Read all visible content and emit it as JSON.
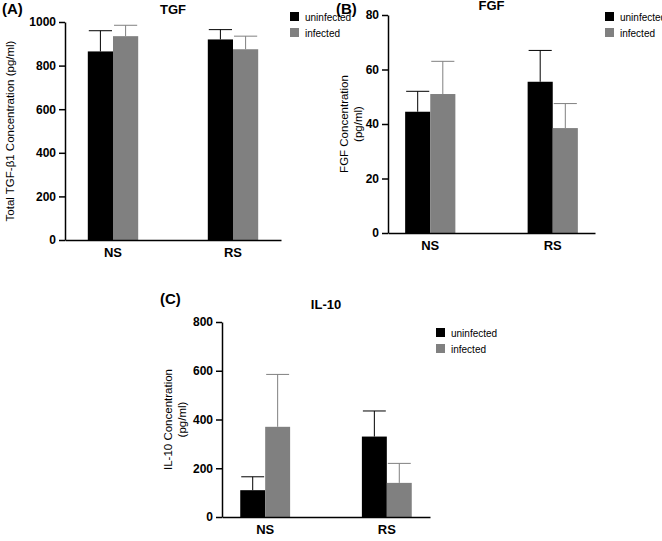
{
  "chart_data": [
    {
      "type": "bar",
      "panel_label": "(A)",
      "title": "TGF",
      "ylabel": [
        "Total TGF-β1 Concentration (pg/ml)"
      ],
      "categories": [
        "NS",
        "RS"
      ],
      "series": [
        {
          "name": "uninfected",
          "color": "#000000",
          "values": [
            865,
            920
          ],
          "errors": [
            95,
            45
          ]
        },
        {
          "name": "infected",
          "color": "#808080",
          "values": [
            935,
            875
          ],
          "errors": [
            50,
            60
          ]
        }
      ],
      "ylim": [
        0,
        1000
      ],
      "yticks": [
        0,
        200,
        400,
        600,
        800,
        1000
      ],
      "legend": "top-right"
    },
    {
      "type": "bar",
      "panel_label": "(B)",
      "title": "FGF",
      "ylabel": [
        "FGF Concentration",
        "(pg/ml)"
      ],
      "categories": [
        "NS",
        "RS"
      ],
      "series": [
        {
          "name": "uninfected",
          "color": "#000000",
          "values": [
            44.5,
            55.5
          ],
          "errors": [
            7.5,
            11.5
          ]
        },
        {
          "name": "infected",
          "color": "#808080",
          "values": [
            51,
            38.5
          ],
          "errors": [
            12,
            9
          ]
        }
      ],
      "ylim": [
        0,
        80
      ],
      "yticks": [
        0,
        20,
        40,
        60,
        80
      ],
      "legend": "top-right"
    },
    {
      "type": "bar",
      "panel_label": "(C)",
      "title": "IL-10",
      "ylabel": [
        "IL-10 Concentration",
        "(pg/ml)"
      ],
      "categories": [
        "NS",
        "RS"
      ],
      "series": [
        {
          "name": "uninfected",
          "color": "#000000",
          "values": [
            110,
            330
          ],
          "errors": [
            55,
            105
          ]
        },
        {
          "name": "infected",
          "color": "#808080",
          "values": [
            370,
            140
          ],
          "errors": [
            215,
            80
          ]
        }
      ],
      "ylim": [
        0,
        800
      ],
      "yticks": [
        0,
        200,
        400,
        600,
        800
      ],
      "legend": "top-right"
    }
  ]
}
